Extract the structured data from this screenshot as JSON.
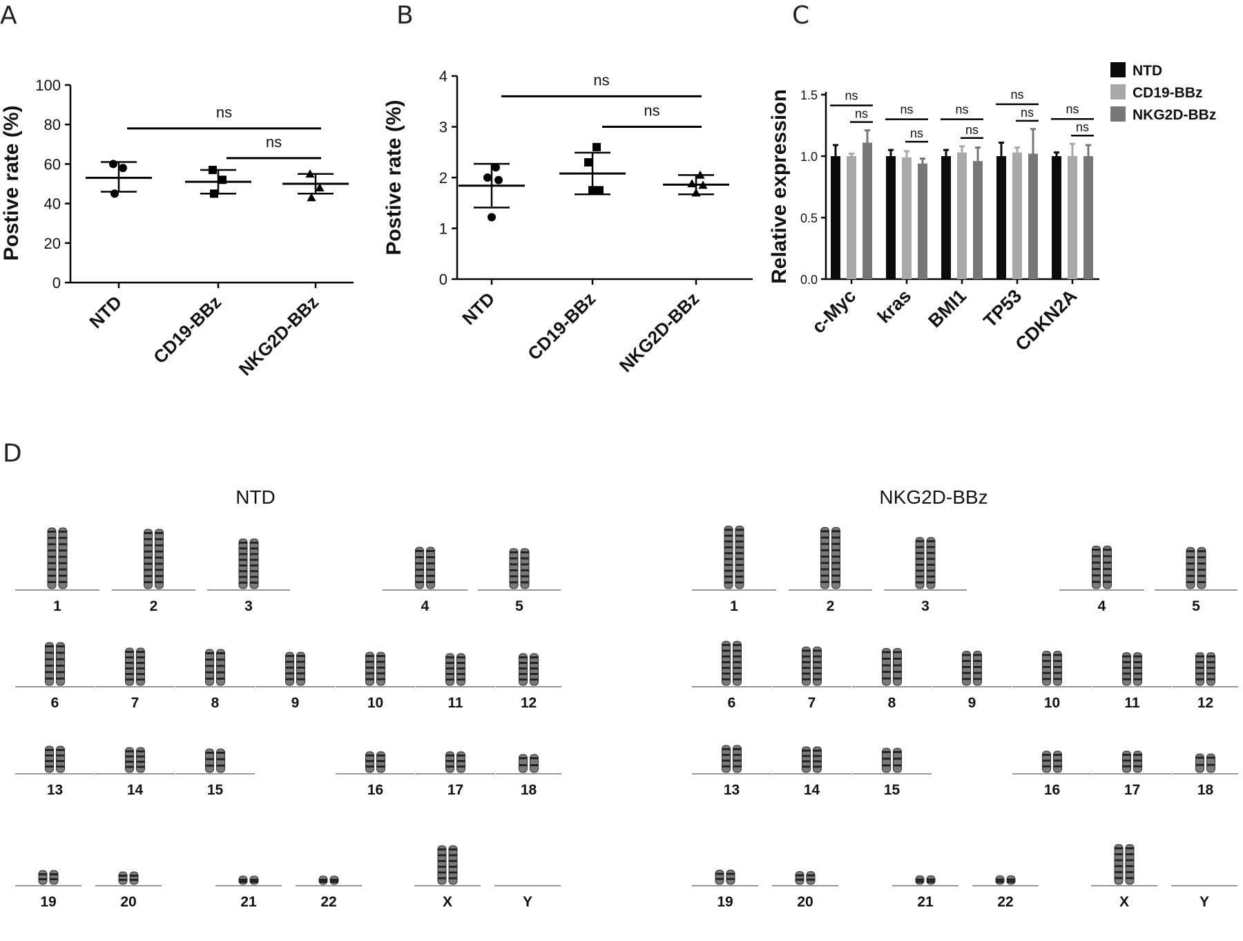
{
  "panels": {
    "a_label": "A",
    "b_label": "B",
    "c_label": "C",
    "d_label": "D"
  },
  "chart_data": [
    {
      "id": "A",
      "type": "scatter",
      "ylabel": "Postive rate (%)",
      "ylim": [
        0,
        100
      ],
      "yticks": [
        0,
        20,
        40,
        60,
        80,
        100
      ],
      "categories": [
        "NTD",
        "CD19-BBz",
        "NKG2D-BBz"
      ],
      "markers": [
        "circle",
        "square",
        "triangle"
      ],
      "points": [
        [
          60,
          58,
          45
        ],
        [
          57,
          52,
          45
        ],
        [
          55,
          48,
          43
        ]
      ],
      "mean": [
        53,
        51,
        50
      ],
      "sd_upper": [
        61,
        57,
        55
      ],
      "sd_lower": [
        46,
        45,
        45
      ],
      "comparisons": [
        {
          "from": 0,
          "to": 2,
          "label": "ns",
          "y": 78
        },
        {
          "from": 1,
          "to": 2,
          "label": "ns",
          "y": 63
        }
      ]
    },
    {
      "id": "B",
      "type": "scatter",
      "ylabel": "Postive rate (%)",
      "ylim": [
        0,
        4
      ],
      "yticks": [
        0,
        1,
        2,
        3,
        4
      ],
      "categories": [
        "NTD",
        "CD19-BBz",
        "NKG2D-BBz"
      ],
      "markers": [
        "circle",
        "square",
        "triangle"
      ],
      "points": [
        [
          2.2,
          2.0,
          1.95,
          1.22
        ],
        [
          2.6,
          2.3,
          1.75,
          1.75
        ],
        [
          2.05,
          1.88,
          1.85,
          1.7
        ]
      ],
      "mean": [
        1.84,
        2.08,
        1.86
      ],
      "sd_upper": [
        2.27,
        2.49,
        2.05
      ],
      "sd_lower": [
        1.41,
        1.67,
        1.67
      ],
      "comparisons": [
        {
          "from": 0,
          "to": 2,
          "label": "ns",
          "y": 3.6
        },
        {
          "from": 1,
          "to": 2,
          "label": "ns",
          "y": 3.0
        }
      ]
    },
    {
      "id": "C",
      "type": "bar",
      "ylabel": "Relative expression",
      "ylim": [
        0,
        1.5
      ],
      "yticks": [
        "0.0",
        "0.5",
        "1.0",
        "1.5"
      ],
      "categories": [
        "c-Myc",
        "kras",
        "BMI1",
        "TP53",
        "CDKN2A"
      ],
      "series": [
        {
          "name": "NTD",
          "color": "#0a0a0a",
          "values": [
            1.0,
            1.0,
            1.0,
            1.0,
            1.0
          ],
          "errors": [
            0.09,
            0.05,
            0.05,
            0.11,
            0.03
          ]
        },
        {
          "name": "CD19-BBz",
          "color": "#a9a9a9",
          "values": [
            1.0,
            0.99,
            1.03,
            1.03,
            1.0
          ],
          "errors": [
            0.02,
            0.05,
            0.05,
            0.04,
            0.1
          ]
        },
        {
          "name": "NKG2D-BBz",
          "color": "#777777",
          "values": [
            1.11,
            0.94,
            0.96,
            1.02,
            1.0
          ],
          "errors": [
            0.1,
            0.04,
            0.11,
            0.2,
            0.09
          ]
        }
      ],
      "sig_label": "ns",
      "legend_position": "top-right"
    }
  ],
  "karyotype": {
    "left_title": "NTD",
    "right_title": "NKG2D-BBz",
    "chromosomes": [
      "1",
      "2",
      "3",
      "4",
      "5",
      "6",
      "7",
      "8",
      "9",
      "10",
      "11",
      "12",
      "13",
      "14",
      "15",
      "16",
      "17",
      "18",
      "19",
      "20",
      "21",
      "22",
      "X",
      "Y"
    ]
  }
}
